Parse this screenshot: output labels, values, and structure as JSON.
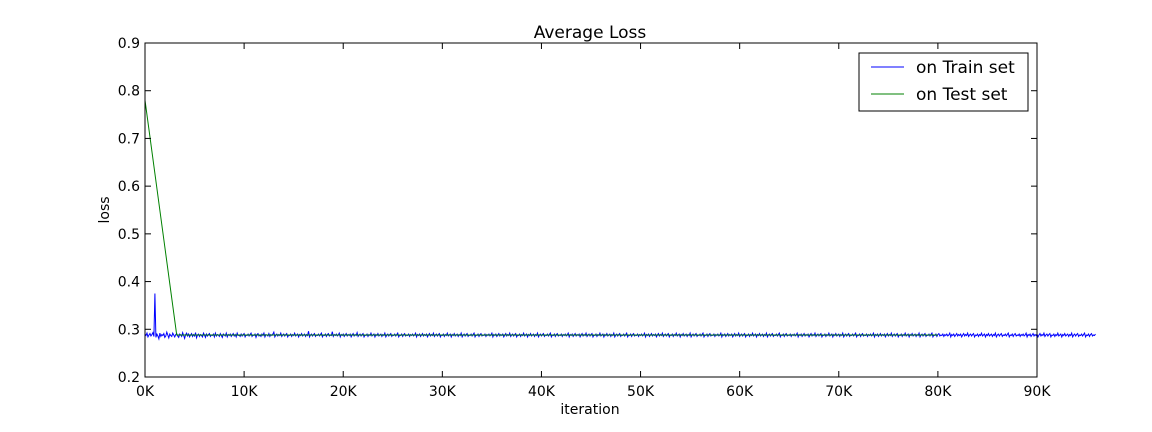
{
  "chart_data": {
    "type": "line",
    "title": "Average Loss",
    "xlabel": "iteration",
    "ylabel": "loss",
    "xlim": [
      0,
      90000
    ],
    "ylim": [
      0.2,
      0.9
    ],
    "xticks": [
      0,
      10000,
      20000,
      30000,
      40000,
      50000,
      60000,
      70000,
      80000,
      90000
    ],
    "xtick_labels": [
      "0K",
      "10K",
      "20K",
      "30K",
      "40K",
      "50K",
      "60K",
      "70K",
      "80K",
      "90K"
    ],
    "yticks": [
      0.2,
      0.3,
      0.4,
      0.5,
      0.6,
      0.7,
      0.8,
      0.9
    ],
    "ytick_labels": [
      "0.2",
      "0.3",
      "0.4",
      "0.5",
      "0.6",
      "0.7",
      "0.8",
      "0.9"
    ],
    "grid": false,
    "legend_position": "top-right",
    "series": [
      {
        "name": "on Train set",
        "color": "#0000ff",
        "x_start": 0,
        "x_step": 100,
        "values": [
          0.29,
          0.287,
          0.292,
          0.284,
          0.288,
          0.291,
          0.286,
          0.289,
          0.293,
          0.285,
          0.375,
          0.283,
          0.29,
          0.286,
          0.28,
          0.292,
          0.285,
          0.289,
          0.287,
          0.291,
          0.283,
          0.286,
          0.294,
          0.288,
          0.282,
          0.29,
          0.287,
          0.285,
          0.292,
          0.288,
          0.284,
          0.289,
          0.291,
          0.286,
          0.283,
          0.29,
          0.288,
          0.285,
          0.293,
          0.287,
          0.281,
          0.289,
          0.292,
          0.286,
          0.29,
          0.284,
          0.288,
          0.291,
          0.285,
          0.289,
          0.286,
          0.293,
          0.282,
          0.288,
          0.29,
          0.285,
          0.289,
          0.287,
          0.284,
          0.292,
          0.288,
          0.283,
          0.29,
          0.286,
          0.289,
          0.291,
          0.285,
          0.288,
          0.287,
          0.29,
          0.284,
          0.292,
          0.286,
          0.289,
          0.288,
          0.285,
          0.291,
          0.287,
          0.283,
          0.29,
          0.288,
          0.286,
          0.292,
          0.284,
          0.289,
          0.287,
          0.29,
          0.285,
          0.288,
          0.291,
          0.286,
          0.289,
          0.284,
          0.292,
          0.287,
          0.288,
          0.285,
          0.29,
          0.286,
          0.289,
          0.291,
          0.284,
          0.288,
          0.287,
          0.29,
          0.286,
          0.289,
          0.292,
          0.285,
          0.288,
          0.287,
          0.29,
          0.283,
          0.289,
          0.291,
          0.286,
          0.288,
          0.285,
          0.29,
          0.287,
          0.292,
          0.284,
          0.289,
          0.288,
          0.286,
          0.291,
          0.285,
          0.289,
          0.287,
          0.29,
          0.294,
          0.284,
          0.288,
          0.29,
          0.286,
          0.289,
          0.287,
          0.292,
          0.285,
          0.288,
          0.29,
          0.286,
          0.289,
          0.291,
          0.284,
          0.288,
          0.287,
          0.29,
          0.285,
          0.289,
          0.287,
          0.292,
          0.286,
          0.288,
          0.29,
          0.284,
          0.289,
          0.287,
          0.291,
          0.286,
          0.288,
          0.29,
          0.285,
          0.289,
          0.287,
          0.296,
          0.284,
          0.288,
          0.29,
          0.286,
          0.289,
          0.291,
          0.285,
          0.288,
          0.287,
          0.29,
          0.286,
          0.289,
          0.292,
          0.284,
          0.288,
          0.287,
          0.29,
          0.285,
          0.289,
          0.291,
          0.286,
          0.288,
          0.287,
          0.295,
          0.285,
          0.289,
          0.287,
          0.29,
          0.286,
          0.288,
          0.292,
          0.284,
          0.289,
          0.287,
          0.29,
          0.285,
          0.288,
          0.291,
          0.286,
          0.289,
          0.287,
          0.29,
          0.284,
          0.288,
          0.291,
          0.286,
          0.289,
          0.287,
          0.293,
          0.285,
          0.288,
          0.29,
          0.286,
          0.289,
          0.291,
          0.284,
          0.288,
          0.287,
          0.29,
          0.285,
          0.289,
          0.287,
          0.292,
          0.286,
          0.288,
          0.29,
          0.284,
          0.289,
          0.287,
          0.291,
          0.286,
          0.288,
          0.29,
          0.285,
          0.289,
          0.287,
          0.292,
          0.284,
          0.288,
          0.29,
          0.286,
          0.289,
          0.291,
          0.285,
          0.288,
          0.287,
          0.29,
          0.286,
          0.289,
          0.292,
          0.284,
          0.288,
          0.287,
          0.29,
          0.285,
          0.289,
          0.291,
          0.286,
          0.288,
          0.287,
          0.29,
          0.285,
          0.289,
          0.287,
          0.29,
          0.286,
          0.288,
          0.292,
          0.284,
          0.289,
          0.287,
          0.29,
          0.285,
          0.288,
          0.291,
          0.286,
          0.289,
          0.287,
          0.29,
          0.284,
          0.288,
          0.291,
          0.286,
          0.289,
          0.287,
          0.292,
          0.285,
          0.288,
          0.29,
          0.286,
          0.289,
          0.291,
          0.284,
          0.288,
          0.287,
          0.29,
          0.285,
          0.289,
          0.287,
          0.292,
          0.286,
          0.288,
          0.29,
          0.284,
          0.289,
          0.287,
          0.291,
          0.286,
          0.288,
          0.29,
          0.285,
          0.289,
          0.287,
          0.292,
          0.284,
          0.288,
          0.29,
          0.286,
          0.289,
          0.291,
          0.285,
          0.288,
          0.287,
          0.29,
          0.286,
          0.289,
          0.292,
          0.284,
          0.288,
          0.287,
          0.29,
          0.285,
          0.289,
          0.291,
          0.286,
          0.288,
          0.287,
          0.29,
          0.285,
          0.289,
          0.287,
          0.29,
          0.286,
          0.288,
          0.292,
          0.284,
          0.289,
          0.287,
          0.29,
          0.285,
          0.288,
          0.291,
          0.286,
          0.289,
          0.287,
          0.29,
          0.284,
          0.288,
          0.291,
          0.286,
          0.289,
          0.287,
          0.292,
          0.285,
          0.288,
          0.29,
          0.286,
          0.289,
          0.291,
          0.284,
          0.288,
          0.287,
          0.29,
          0.285,
          0.289,
          0.287,
          0.292,
          0.286,
          0.288,
          0.29,
          0.284,
          0.289,
          0.287,
          0.291,
          0.286,
          0.288,
          0.29,
          0.285,
          0.289,
          0.287,
          0.292,
          0.284,
          0.288,
          0.29,
          0.286,
          0.289,
          0.291,
          0.285,
          0.288,
          0.287,
          0.29,
          0.286,
          0.289,
          0.292,
          0.284,
          0.288,
          0.287,
          0.29,
          0.285,
          0.289,
          0.291,
          0.286,
          0.288,
          0.287,
          0.29,
          0.285,
          0.289,
          0.287,
          0.29,
          0.286,
          0.288,
          0.292,
          0.284,
          0.289,
          0.287,
          0.29,
          0.285,
          0.288,
          0.291,
          0.286,
          0.289,
          0.287,
          0.29,
          0.284,
          0.288,
          0.291,
          0.286,
          0.289,
          0.287,
          0.292,
          0.285,
          0.288,
          0.29,
          0.286,
          0.289,
          0.291,
          0.284,
          0.288,
          0.287,
          0.29,
          0.285,
          0.289,
          0.287,
          0.292,
          0.286,
          0.288,
          0.29,
          0.284,
          0.289,
          0.287,
          0.291,
          0.286,
          0.288,
          0.29,
          0.285,
          0.289,
          0.287,
          0.292,
          0.284,
          0.288,
          0.29,
          0.286,
          0.289,
          0.291,
          0.285,
          0.288,
          0.287,
          0.29,
          0.286,
          0.289,
          0.292,
          0.284,
          0.288,
          0.287,
          0.29,
          0.285,
          0.289,
          0.291,
          0.286,
          0.288,
          0.287,
          0.29,
          0.285,
          0.289,
          0.287,
          0.29,
          0.286,
          0.288,
          0.292,
          0.284,
          0.289,
          0.287,
          0.29,
          0.285,
          0.288,
          0.291,
          0.286,
          0.289,
          0.287,
          0.29,
          0.284,
          0.288,
          0.291,
          0.286,
          0.289,
          0.287,
          0.292,
          0.285,
          0.288,
          0.29,
          0.286,
          0.289,
          0.291,
          0.284,
          0.288,
          0.287,
          0.29,
          0.285,
          0.289,
          0.287,
          0.292,
          0.286,
          0.288,
          0.29,
          0.284,
          0.289,
          0.287,
          0.291,
          0.286,
          0.288,
          0.29,
          0.285,
          0.289,
          0.287,
          0.292,
          0.284,
          0.288,
          0.29,
          0.286,
          0.289,
          0.291,
          0.285,
          0.288,
          0.287,
          0.29,
          0.286,
          0.289,
          0.292,
          0.284,
          0.288,
          0.287,
          0.29,
          0.285,
          0.289,
          0.291,
          0.286,
          0.288,
          0.287,
          0.29,
          0.285,
          0.289,
          0.287,
          0.29,
          0.286,
          0.288,
          0.292,
          0.284,
          0.289,
          0.287,
          0.29,
          0.285,
          0.288,
          0.291,
          0.286,
          0.289,
          0.287,
          0.29,
          0.284,
          0.288,
          0.291,
          0.286,
          0.289,
          0.287,
          0.292,
          0.285,
          0.288,
          0.29,
          0.286,
          0.289,
          0.291,
          0.284,
          0.288,
          0.287,
          0.29,
          0.285,
          0.289,
          0.287,
          0.292,
          0.286,
          0.288,
          0.29,
          0.284,
          0.289,
          0.287,
          0.291,
          0.286,
          0.288,
          0.29,
          0.285,
          0.289,
          0.287,
          0.292,
          0.284,
          0.288,
          0.29,
          0.286,
          0.289,
          0.291,
          0.285,
          0.288,
          0.287,
          0.29,
          0.286,
          0.289,
          0.292,
          0.284,
          0.288,
          0.287,
          0.29,
          0.285,
          0.289,
          0.291,
          0.286,
          0.288,
          0.287,
          0.29,
          0.285,
          0.289,
          0.287,
          0.29,
          0.286,
          0.288,
          0.292,
          0.284,
          0.289,
          0.287,
          0.29,
          0.285,
          0.288,
          0.291,
          0.286,
          0.289,
          0.287,
          0.29,
          0.284,
          0.288,
          0.291,
          0.286,
          0.289,
          0.287,
          0.292,
          0.285,
          0.288,
          0.29,
          0.286,
          0.289,
          0.291,
          0.284,
          0.288,
          0.287,
          0.29,
          0.285,
          0.289,
          0.287,
          0.292,
          0.286,
          0.288,
          0.29,
          0.284,
          0.289,
          0.287,
          0.291,
          0.286,
          0.288,
          0.29,
          0.285,
          0.289,
          0.287,
          0.292,
          0.284,
          0.288,
          0.29,
          0.286,
          0.289,
          0.291,
          0.285,
          0.288,
          0.287,
          0.29,
          0.286,
          0.289,
          0.292,
          0.284,
          0.288,
          0.287,
          0.29,
          0.285,
          0.289,
          0.291,
          0.286,
          0.288,
          0.287,
          0.29,
          0.285,
          0.289,
          0.287,
          0.29,
          0.286,
          0.288,
          0.292,
          0.284,
          0.289,
          0.287,
          0.29,
          0.285,
          0.288,
          0.291,
          0.286,
          0.289,
          0.287,
          0.29,
          0.284,
          0.288,
          0.291,
          0.286,
          0.289,
          0.287,
          0.292,
          0.285,
          0.288,
          0.29,
          0.286,
          0.289,
          0.291,
          0.284,
          0.288,
          0.287,
          0.29,
          0.285,
          0.289,
          0.287,
          0.292,
          0.286,
          0.288,
          0.29,
          0.284,
          0.289,
          0.287,
          0.291,
          0.286,
          0.288,
          0.29,
          0.285,
          0.289,
          0.287,
          0.292,
          0.284,
          0.288,
          0.29,
          0.286,
          0.289,
          0.291,
          0.285,
          0.288,
          0.287,
          0.29,
          0.286,
          0.289,
          0.292,
          0.284,
          0.288,
          0.287,
          0.29,
          0.285,
          0.289,
          0.291,
          0.286,
          0.288,
          0.287,
          0.29,
          0.285,
          0.289,
          0.287,
          0.29,
          0.286,
          0.288,
          0.292,
          0.284,
          0.289,
          0.287,
          0.29,
          0.285,
          0.288,
          0.291,
          0.286,
          0.289,
          0.287,
          0.29,
          0.284,
          0.288,
          0.291,
          0.286,
          0.289,
          0.287,
          0.292,
          0.285,
          0.288,
          0.29,
          0.286,
          0.289,
          0.291,
          0.284,
          0.288,
          0.287,
          0.29,
          0.285,
          0.289,
          0.287,
          0.292,
          0.286,
          0.288,
          0.29,
          0.284,
          0.289,
          0.287,
          0.291,
          0.286,
          0.288,
          0.29,
          0.285,
          0.289,
          0.287,
          0.292,
          0.284,
          0.288,
          0.29,
          0.286,
          0.289,
          0.291,
          0.285,
          0.288,
          0.287,
          0.29,
          0.286,
          0.289,
          0.292,
          0.284,
          0.288,
          0.287,
          0.29,
          0.285,
          0.289,
          0.291,
          0.286,
          0.288,
          0.287,
          0.29,
          0.285,
          0.289,
          0.287,
          0.29,
          0.286,
          0.288,
          0.292,
          0.284,
          0.289,
          0.287,
          0.29,
          0.285,
          0.288,
          0.291,
          0.286,
          0.289,
          0.287,
          0.29,
          0.284,
          0.288,
          0.291,
          0.286,
          0.289,
          0.287,
          0.292,
          0.285,
          0.288,
          0.29,
          0.286,
          0.289,
          0.291,
          0.284,
          0.288,
          0.287,
          0.29,
          0.285,
          0.289,
          0.287,
          0.292,
          0.286,
          0.288,
          0.29,
          0.284,
          0.289,
          0.287,
          0.291,
          0.286,
          0.288,
          0.29,
          0.285,
          0.289,
          0.287,
          0.292,
          0.284,
          0.288,
          0.29,
          0.286,
          0.289,
          0.291,
          0.285,
          0.288,
          0.287,
          0.29,
          0.286,
          0.289,
          0.292,
          0.284,
          0.288,
          0.287,
          0.29,
          0.285,
          0.289,
          0.291,
          0.286,
          0.288,
          0.287,
          0.29
        ]
      },
      {
        "name": "on Test set",
        "color": "#008000",
        "x": [
          0,
          3200,
          10000,
          20000,
          30000,
          40000,
          50000,
          60000,
          70000,
          80000
        ],
        "values": [
          0.78,
          0.288,
          0.288,
          0.288,
          0.288,
          0.288,
          0.288,
          0.288,
          0.288,
          0.288
        ]
      }
    ]
  }
}
